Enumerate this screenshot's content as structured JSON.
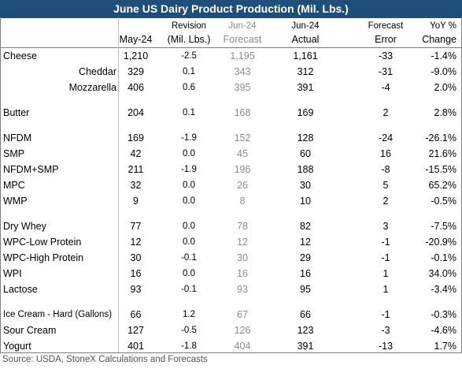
{
  "title": "June US Dairy Product Production (Mil. Lbs.)",
  "headers": [
    {
      "lines": [
        "May-24"
      ]
    },
    {
      "lines": [
        "Revision",
        "(Mil. Lbs.)"
      ]
    },
    {
      "lines": [
        "Jun-24",
        "Forecast"
      ]
    },
    {
      "lines": [
        "Jun-24",
        "Actual"
      ]
    },
    {
      "lines": [
        "Forecast",
        "Error"
      ]
    },
    {
      "lines": [
        "YoY %",
        "Change"
      ]
    }
  ],
  "groups": [
    {
      "rows": [
        [
          "Cheese",
          "1,210",
          "-2.5",
          "1,195",
          "1,161",
          "-33",
          "-1.4%"
        ],
        [
          "Cheddar",
          "329",
          "0.1",
          "343",
          "312",
          "-31",
          "-9.0%"
        ],
        [
          "Mozzarella",
          "406",
          "0.6",
          "395",
          "391",
          "-4",
          "2.0%"
        ]
      ]
    },
    {
      "rows": [
        [
          "Butter",
          "204",
          "0.1",
          "168",
          "169",
          "2",
          "2.8%"
        ]
      ]
    },
    {
      "rows": [
        [
          "NFDM",
          "169",
          "-1.9",
          "152",
          "128",
          "-24",
          "-26.1%"
        ],
        [
          "SMP",
          "42",
          "0.0",
          "45",
          "60",
          "16",
          "21.6%"
        ],
        [
          "NFDM+SMP",
          "211",
          "-1.9",
          "196",
          "188",
          "-8",
          "-15.5%"
        ],
        [
          "MPC",
          "32",
          "0.0",
          "26",
          "30",
          "5",
          "65.2%"
        ],
        [
          "WMP",
          "9",
          "0.0",
          "8",
          "10",
          "2",
          "-0.5%"
        ]
      ]
    },
    {
      "rows": [
        [
          "Dry Whey",
          "77",
          "0.0",
          "78",
          "82",
          "3",
          "-7.5%"
        ],
        [
          "WPC-Low Protein",
          "12",
          "0.0",
          "12",
          "12",
          "-1",
          "-20.9%"
        ],
        [
          "WPC-High Protein",
          "30",
          "-0.1",
          "30",
          "29",
          "-1",
          "-0.1%"
        ],
        [
          "WPI",
          "16",
          "0.0",
          "16",
          "16",
          "1",
          "34.0%"
        ],
        [
          "Lactose",
          "93",
          "-0.1",
          "93",
          "95",
          "1",
          "-3.4%"
        ]
      ]
    },
    {
      "rows": [
        [
          "Ice Cream - Hard (Gallons)",
          "66",
          "1.2",
          "67",
          "66",
          "-1",
          "-0.3%"
        ],
        [
          "Sour Cream",
          "127",
          "-0.5",
          "126",
          "123",
          "-3",
          "-4.6%"
        ],
        [
          "Yogurt",
          "401",
          "-1.8",
          "404",
          "391",
          "-13",
          "1.7%"
        ]
      ]
    }
  ],
  "source": "Source: USDA, StoneX Calculations and Forecasts"
}
